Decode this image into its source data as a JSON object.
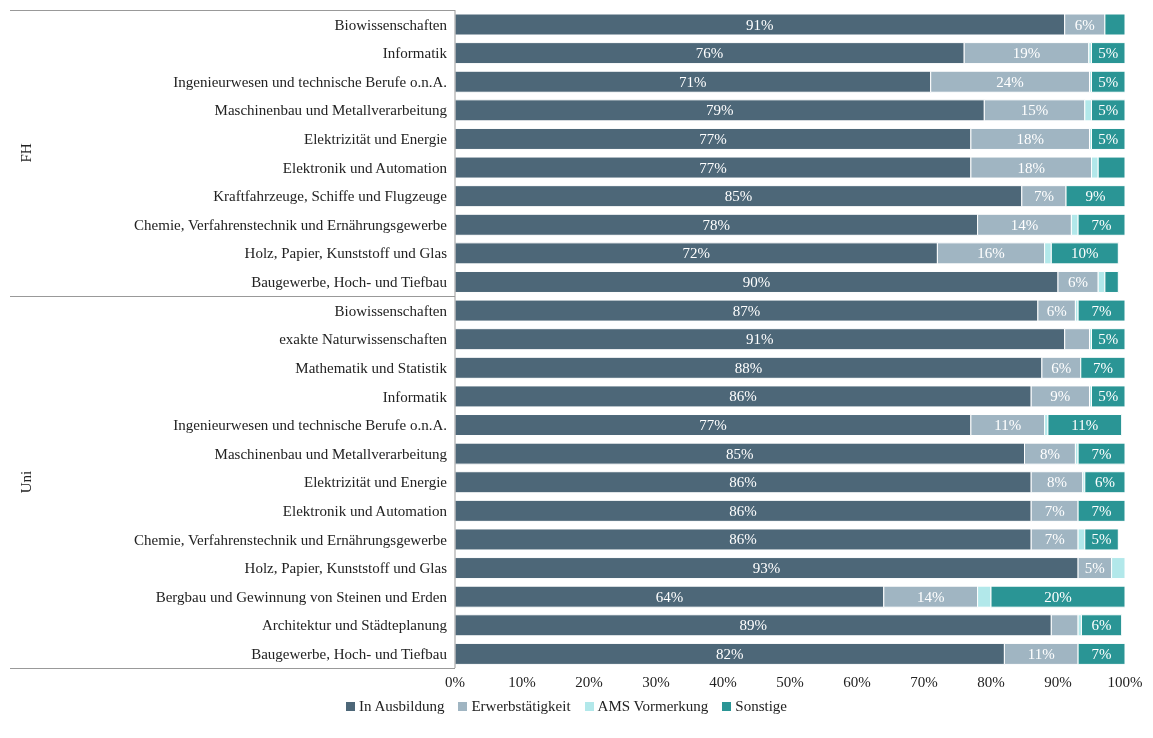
{
  "chart_data": {
    "type": "bar",
    "orientation": "horizontal",
    "stacked": true,
    "categories": [
      "Biowissenschaften",
      "Informatik",
      "Ingenieurwesen und technische Berufe o.n.A.",
      "Maschinenbau und Metallverarbeitung",
      "Elektrizität und Energie",
      "Elektronik und Automation",
      "Kraftfahrzeuge, Schiffe und Flugzeuge",
      "Chemie, Verfahrenstechnik und Ernährungsgewerbe",
      "Holz, Papier, Kunststoff und Glas",
      "Baugewerbe, Hoch- und Tiefbau",
      "Biowissenschaften",
      "exakte Naturwissenschaften",
      "Mathematik und Statistik",
      "Informatik",
      "Ingenieurwesen und technische Berufe o.n.A.",
      "Maschinenbau und Metallverarbeitung",
      "Elektrizität und Energie",
      "Elektronik und Automation",
      "Chemie, Verfahrenstechnik und Ernährungsgewerbe",
      "Holz, Papier, Kunststoff und Glas",
      "Bergbau und Gewinnung von Steinen und Erden",
      "Architektur und Städteplanung",
      "Baugewerbe, Hoch- und Tiefbau"
    ],
    "annotations": [
      "FH",
      "Uni"
    ],
    "series": [
      {
        "name": "In Ausbildung",
        "color": "#4d6778",
        "values": [
          91,
          76,
          71,
          79,
          77,
          77,
          84.6,
          78,
          72,
          90,
          87,
          91,
          87.6,
          86,
          77,
          85,
          86,
          86,
          86,
          93,
          64,
          89,
          82
        ],
        "value_labels": [
          "91%",
          "76%",
          "71%",
          "79%",
          "77%",
          "77%",
          "85%",
          "78%",
          "72%",
          "90%",
          "87%",
          "91%",
          "88%",
          "86%",
          "77%",
          "85%",
          "86%",
          "86%",
          "86%",
          "93%",
          "64%",
          "89%",
          "82%"
        ]
      },
      {
        "name": "Erwerbstätigkeit",
        "color": "#a0b5c2",
        "values": [
          6,
          18.6,
          23.7,
          15,
          17.7,
          18,
          6.6,
          14,
          16,
          6,
          5.6,
          3.7,
          5.8,
          8.7,
          11,
          7.6,
          7.7,
          7,
          7,
          5,
          14,
          4,
          11
        ],
        "value_labels": [
          "6%",
          "19%",
          "24%",
          "15%",
          "18%",
          "18%",
          "7%",
          "14%",
          "16%",
          "6%",
          "6%",
          null,
          "6%",
          "9%",
          "11%",
          "8%",
          "8%",
          "7%",
          "7%",
          "5%",
          "14%",
          null,
          "11%"
        ]
      },
      {
        "name": "AMS Vormerkung",
        "color": "#b2e8ea",
        "values": [
          0,
          0.4,
          0.3,
          1,
          0.3,
          1,
          0,
          1,
          1,
          1,
          0.4,
          0.3,
          0,
          0.3,
          0.5,
          0.4,
          0.3,
          0,
          1,
          2,
          2,
          0.5,
          0
        ],
        "value_labels": [
          null,
          null,
          null,
          null,
          null,
          null,
          null,
          null,
          null,
          null,
          null,
          null,
          null,
          null,
          null,
          null,
          null,
          null,
          null,
          null,
          null,
          null,
          null
        ]
      },
      {
        "name": "Sonstige",
        "color": "#2a9595",
        "values": [
          3,
          5,
          5,
          5,
          5,
          4,
          8.8,
          7,
          10,
          2,
          7,
          5,
          6.6,
          5,
          11,
          7,
          6,
          7,
          5,
          0,
          20,
          6,
          7
        ],
        "value_labels": [
          null,
          "5%",
          "5%",
          "5%",
          "5%",
          null,
          "9%",
          "7%",
          "10%",
          null,
          "7%",
          "5%",
          "7%",
          "5%",
          "11%",
          "7%",
          "6%",
          "7%",
          "5%",
          null,
          "20%",
          "6%",
          "7%"
        ]
      }
    ],
    "xlim": [
      0,
      100
    ],
    "xticks": [
      {
        "value": 0,
        "label": "0%"
      },
      {
        "value": 10,
        "label": "10%"
      },
      {
        "value": 20,
        "label": "20%"
      },
      {
        "value": 30,
        "label": "30%"
      },
      {
        "value": 40,
        "label": "40%"
      },
      {
        "value": 50,
        "label": "50%"
      },
      {
        "value": 60,
        "label": "60%"
      },
      {
        "value": 70,
        "label": "70%"
      },
      {
        "value": 80,
        "label": "80%"
      },
      {
        "value": 90,
        "label": "90%"
      },
      {
        "value": 100,
        "label": "100%"
      }
    ],
    "grid": false,
    "legend": "bottom"
  }
}
